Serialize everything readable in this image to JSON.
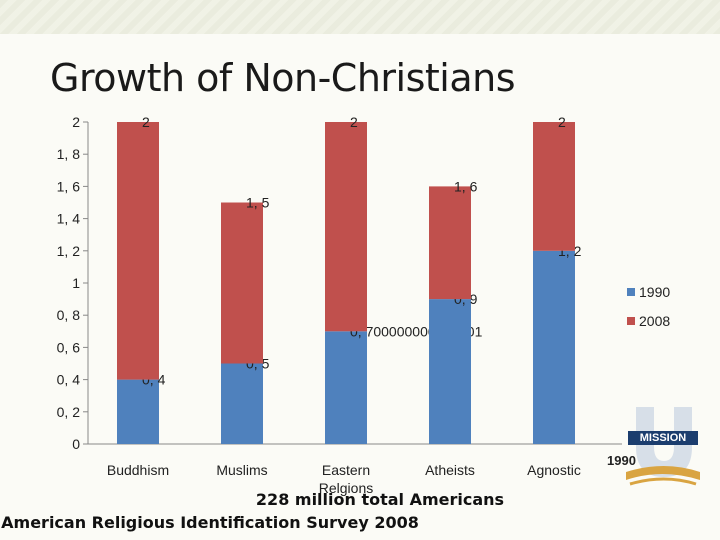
{
  "slide": {
    "title": "Growth of Non-Christians",
    "footer_line1": "228 million total Americans",
    "footer_line2": "American Religious Identification Survey 2008",
    "logo_text": "MISSION"
  },
  "chart_data": {
    "type": "bar",
    "stacked": true,
    "categories": [
      "Buddhism",
      "Muslims",
      "Eastern Relgions",
      "Atheists",
      "Agnostic"
    ],
    "series": [
      {
        "name": "1990",
        "values": [
          0.4,
          0.5,
          0.7,
          0.9,
          1.2
        ],
        "color": "#4f81bd"
      },
      {
        "name": "2008",
        "values": [
          1.6,
          1.0,
          1.3,
          0.7,
          0.8
        ],
        "color": "#c0504d"
      }
    ],
    "data_labels": [
      {
        "series": "1990",
        "labels": [
          "0, 4",
          "0, 5",
          "0, 700000000000001",
          "0, 9",
          "1, 2"
        ]
      },
      {
        "series": "2008",
        "labels": [
          "2",
          "1, 5",
          "2",
          "1, 6",
          "2"
        ]
      }
    ],
    "y_ticks": [
      "0",
      "0, 2",
      "0, 4",
      "0, 6",
      "0, 8",
      "1",
      "1, 2",
      "1, 4",
      "1, 6",
      "1, 8",
      "2"
    ],
    "ylim": [
      0,
      2
    ],
    "grid": false,
    "legend": "right",
    "stray_label": "1990"
  }
}
